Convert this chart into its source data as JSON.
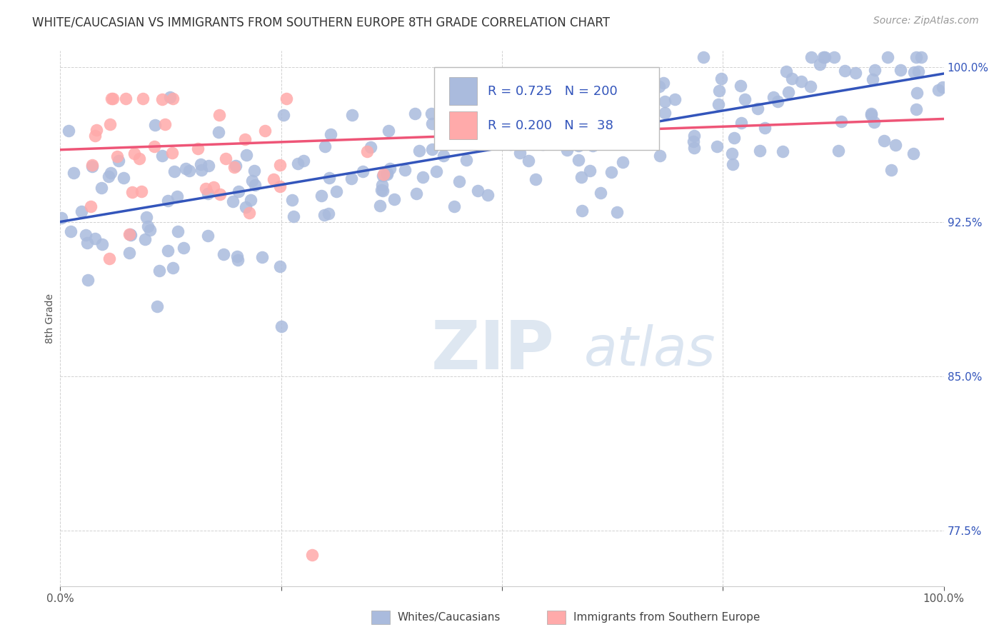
{
  "title": "WHITE/CAUCASIAN VS IMMIGRANTS FROM SOUTHERN EUROPE 8TH GRADE CORRELATION CHART",
  "source": "Source: ZipAtlas.com",
  "ylabel": "8th Grade",
  "blue_R": 0.725,
  "blue_N": 200,
  "pink_R": 0.2,
  "pink_N": 38,
  "blue_marker_color": "#AABBDD",
  "pink_marker_color": "#FFAAAA",
  "blue_line_color": "#3355BB",
  "pink_line_color": "#EE5577",
  "xlim": [
    0.0,
    1.0
  ],
  "ylim": [
    0.748,
    1.008
  ],
  "ytick_positions": [
    0.775,
    0.85,
    0.925,
    1.0
  ],
  "ytick_labels": [
    "77.5%",
    "85.0%",
    "92.5%",
    "100.0%"
  ],
  "watermark_zip": "ZIP",
  "watermark_atlas": "atlas",
  "legend_label_blue": "Whites/Caucasians",
  "legend_label_pink": "Immigrants from Southern Europe",
  "title_fontsize": 12,
  "source_fontsize": 10,
  "tick_fontsize": 11,
  "legend_fontsize": 11,
  "blue_trend_start_y": 0.925,
  "blue_trend_end_y": 0.997,
  "pink_trend_start_y": 0.96,
  "pink_trend_end_y": 0.975
}
